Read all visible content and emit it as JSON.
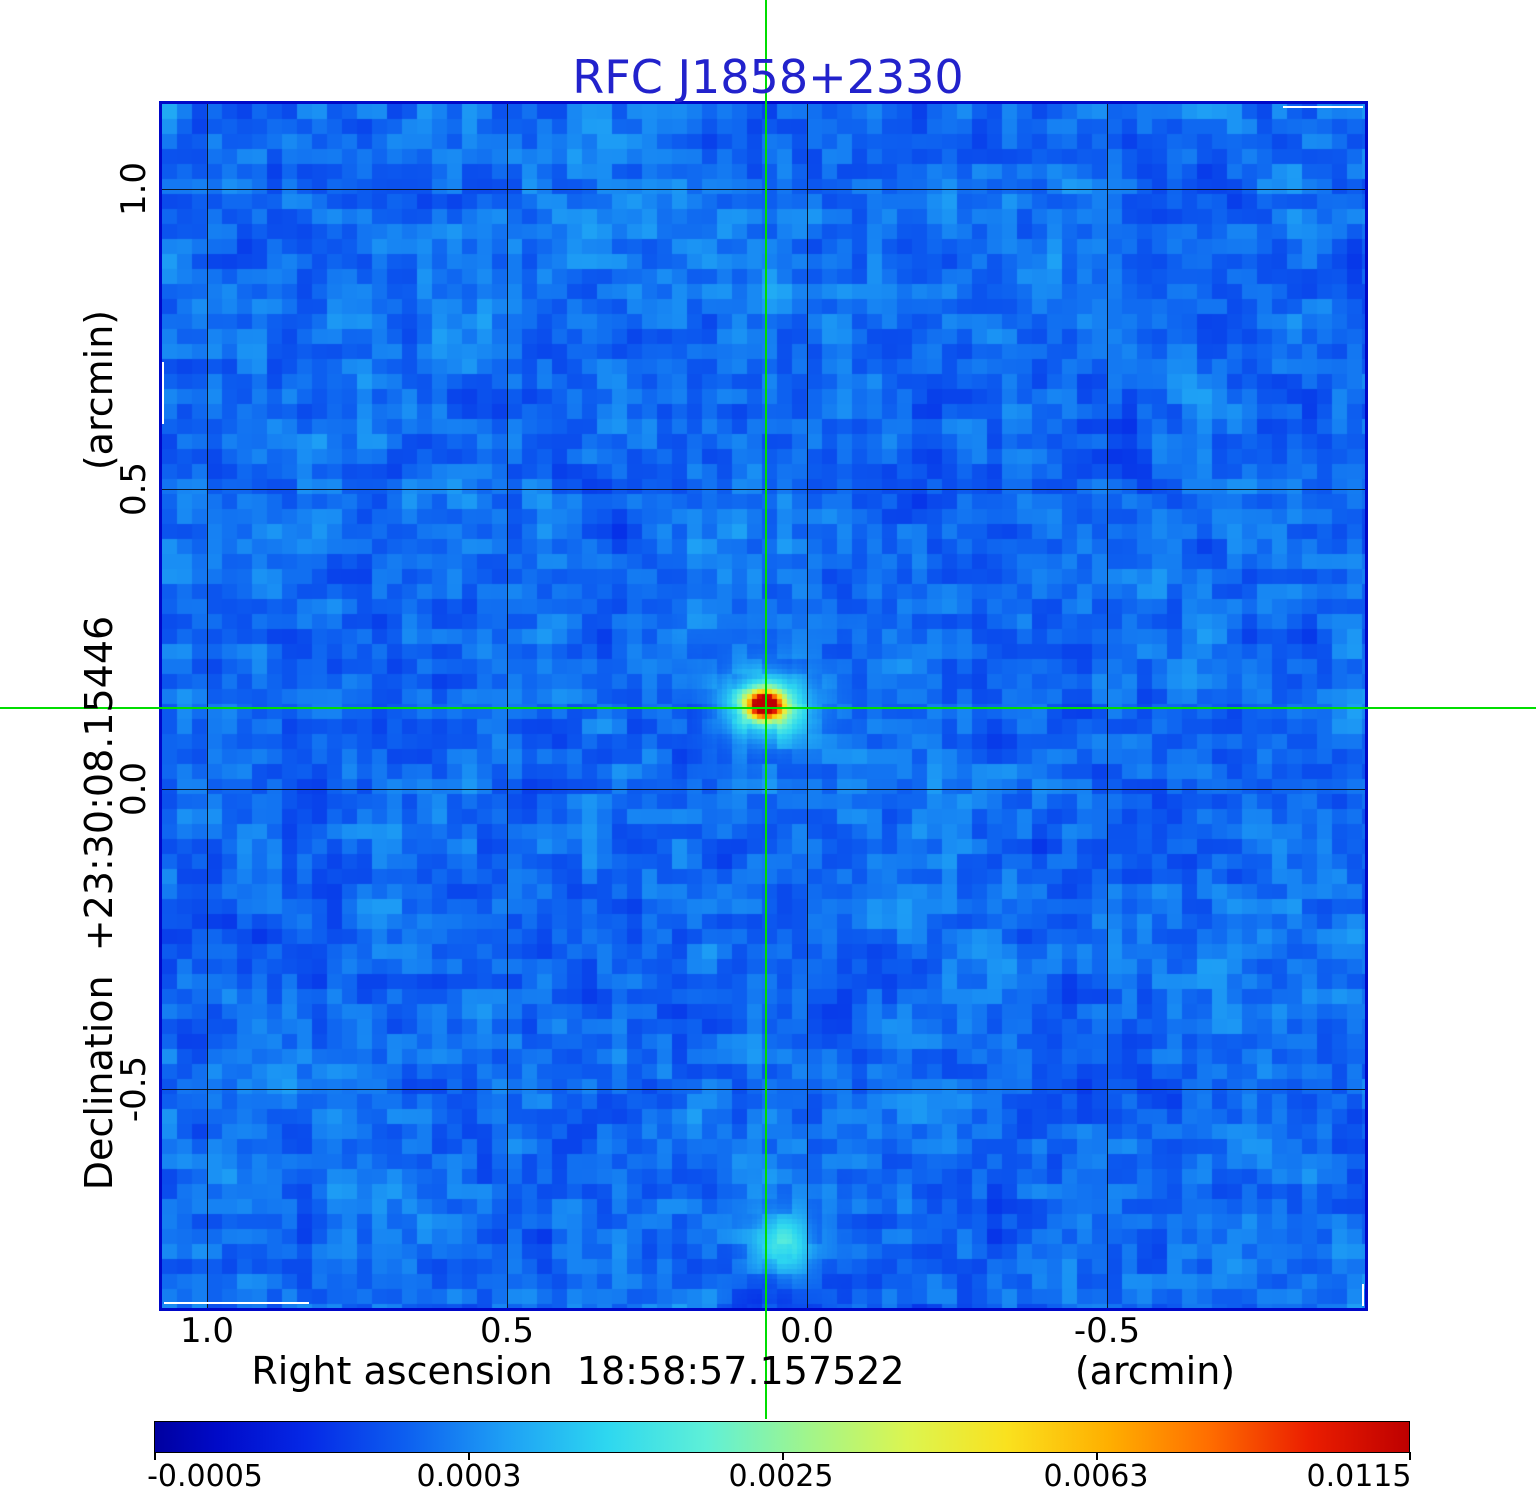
{
  "chart_data": {
    "type": "heatmap",
    "title": "RFC J1858+2330",
    "x_axis": {
      "label": "Right ascension  18:58:57.157522",
      "unit": "(arcmin)",
      "tick_labels": [
        "1.0",
        "0.5",
        "0.0",
        "-0.5"
      ]
    },
    "y_axis": {
      "label": "Declination  +23:30:08.15446",
      "unit": "(arcmin)",
      "tick_labels": [
        "1.0",
        "0.5",
        "0.0",
        "-0.5"
      ]
    },
    "colorbar": {
      "tick_labels": [
        "-0.0005",
        "0.0003",
        "0.0025",
        "0.0063",
        "0.0115"
      ],
      "min_value": -0.0005,
      "max_value": 0.0115
    },
    "peak_source": {
      "ra_offset_arcmin": 0.07,
      "dec_offset_arcmin": 0.14,
      "peak_intensity": 0.0115
    },
    "secondary_source": {
      "ra_offset_arcmin": 0.04,
      "dec_offset_arcmin": -0.76,
      "peak_intensity": 0.003
    },
    "grid": true,
    "legend_position": "none",
    "colors": {
      "title": "#2222cc",
      "crosshair": "#00dd00",
      "plot_border": "#0008c8",
      "background_field": "#0f67f1"
    }
  }
}
